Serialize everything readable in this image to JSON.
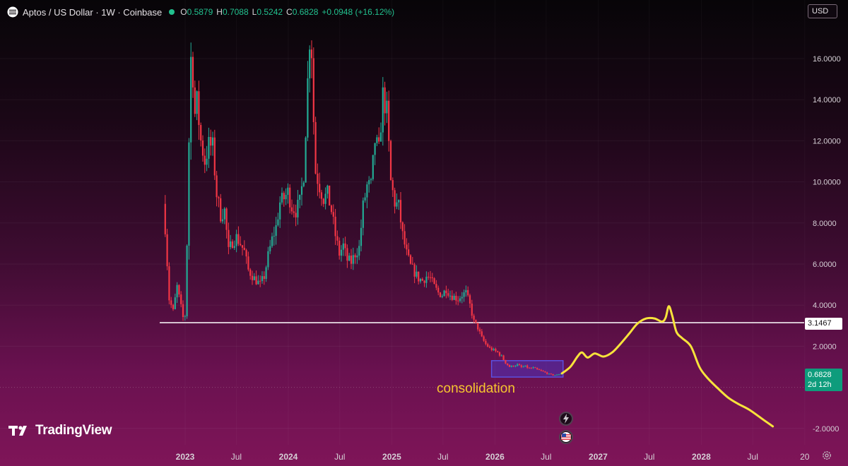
{
  "header": {
    "title": "Aptos / US Dollar · 1W · Coinbase",
    "ohlc": [
      {
        "key": "O",
        "value": "0.5879"
      },
      {
        "key": "H",
        "value": "0.7088"
      },
      {
        "key": "L",
        "value": "0.5242"
      },
      {
        "key": "C",
        "value": "0.6828"
      }
    ],
    "change": "+0.0948 (+16.12%)",
    "status_color": "#22c08e"
  },
  "currency_button": "USD",
  "price_tags": {
    "level": "3.1467",
    "last_price": "0.6828",
    "countdown": "2d 12h"
  },
  "brand": {
    "name": "TradingView"
  },
  "annotation_label": "consolidation",
  "icons": {
    "event_a": "lightning-icon",
    "event_b": "us-flag-icon",
    "settings": "gear-icon",
    "symbol": "aptos-logo-icon"
  },
  "colors": {
    "up": "#22ab94",
    "down": "#f23645",
    "projection": "#f7e33b",
    "consolidation_box": "#5b53e6",
    "level_line": "#ffffff"
  },
  "chart_data": {
    "type": "line",
    "title": "",
    "xlabel": "",
    "ylabel": "",
    "ylim": [
      -2.4,
      17.5
    ],
    "y_ticks": [
      "16.0000",
      "14.0000",
      "12.0000",
      "10.0000",
      "8.0000",
      "6.0000",
      "4.0000",
      "2.0000",
      "-2.0000"
    ],
    "y_tick_values": [
      16,
      14,
      12,
      10,
      8,
      6,
      4,
      2,
      -2
    ],
    "x_ticks": [
      "2023",
      "Jul",
      "2024",
      "Jul",
      "2025",
      "Jul",
      "2026",
      "Jul",
      "2027",
      "Jul",
      "2028",
      "Jul",
      "20"
    ],
    "x_tick_dates": [
      "2023-01-01",
      "2023-07-01",
      "2024-01-01",
      "2024-07-01",
      "2025-01-01",
      "2025-07-01",
      "2026-01-01",
      "2026-07-01",
      "2027-01-01",
      "2027-07-01",
      "2028-01-01",
      "2028-07-01",
      "2029-01-01"
    ],
    "horizontal_level": 3.1467,
    "last_price": 0.6828,
    "series": [
      {
        "type": "price",
        "points": [
          [
            "2022-10-19",
            9.4
          ],
          [
            "2022-10-26",
            7.8
          ],
          [
            "2022-11-09",
            4.3
          ],
          [
            "2022-11-23",
            3.7
          ],
          [
            "2022-12-07",
            4.9
          ],
          [
            "2022-12-28",
            3.4
          ],
          [
            "2023-01-04",
            3.5
          ],
          [
            "2023-01-11",
            7.0
          ],
          [
            "2023-01-18",
            12.0
          ],
          [
            "2023-01-25",
            16.0
          ],
          [
            "2023-02-01",
            15.2
          ],
          [
            "2023-02-08",
            13.3
          ],
          [
            "2023-02-15",
            13.9
          ],
          [
            "2023-03-01",
            12.0
          ],
          [
            "2023-03-15",
            11.0
          ],
          [
            "2023-03-29",
            11.8
          ],
          [
            "2023-04-12",
            11.7
          ],
          [
            "2023-04-26",
            9.4
          ],
          [
            "2023-05-10",
            8.4
          ],
          [
            "2023-05-24",
            8.6
          ],
          [
            "2023-06-07",
            6.6
          ],
          [
            "2023-06-21",
            7.1
          ],
          [
            "2023-07-05",
            7.3
          ],
          [
            "2023-07-19",
            7.0
          ],
          [
            "2023-08-02",
            6.6
          ],
          [
            "2023-08-16",
            5.7
          ],
          [
            "2023-09-06",
            5.3
          ],
          [
            "2023-09-27",
            5.0
          ],
          [
            "2023-10-11",
            5.4
          ],
          [
            "2023-10-25",
            6.4
          ],
          [
            "2023-11-08",
            7.2
          ],
          [
            "2023-11-22",
            7.8
          ],
          [
            "2023-12-06",
            9.0
          ],
          [
            "2023-12-20",
            9.2
          ],
          [
            "2024-01-03",
            9.5
          ],
          [
            "2024-01-17",
            8.8
          ],
          [
            "2024-01-31",
            8.6
          ],
          [
            "2024-02-14",
            9.0
          ],
          [
            "2024-02-28",
            10.4
          ],
          [
            "2024-03-06",
            12.6
          ],
          [
            "2024-03-13",
            14.9
          ],
          [
            "2024-03-20",
            17.0
          ],
          [
            "2024-03-27",
            16.4
          ],
          [
            "2024-04-03",
            13.0
          ],
          [
            "2024-04-10",
            10.5
          ],
          [
            "2024-04-24",
            9.8
          ],
          [
            "2024-05-08",
            9.2
          ],
          [
            "2024-05-22",
            9.4
          ],
          [
            "2024-06-05",
            8.6
          ],
          [
            "2024-06-19",
            7.4
          ],
          [
            "2024-07-03",
            6.5
          ],
          [
            "2024-07-17",
            6.9
          ],
          [
            "2024-07-31",
            6.2
          ],
          [
            "2024-08-14",
            6.1
          ],
          [
            "2024-08-28",
            6.5
          ],
          [
            "2024-09-11",
            6.8
          ],
          [
            "2024-09-25",
            8.8
          ],
          [
            "2024-10-09",
            9.8
          ],
          [
            "2024-10-23",
            9.8
          ],
          [
            "2024-11-06",
            12.0
          ],
          [
            "2024-11-20",
            11.5
          ],
          [
            "2024-12-04",
            14.2
          ],
          [
            "2024-12-18",
            13.4
          ],
          [
            "2025-01-01",
            10.0
          ],
          [
            "2025-01-15",
            9.0
          ],
          [
            "2025-01-29",
            8.8
          ],
          [
            "2025-02-12",
            7.4
          ],
          [
            "2025-02-26",
            6.5
          ],
          [
            "2025-03-12",
            5.9
          ],
          [
            "2025-03-26",
            5.6
          ],
          [
            "2025-04-09",
            5.3
          ],
          [
            "2025-04-23",
            5.2
          ],
          [
            "2025-05-07",
            5.4
          ],
          [
            "2025-05-21",
            5.3
          ],
          [
            "2025-06-04",
            4.9
          ],
          [
            "2025-06-18",
            4.6
          ],
          [
            "2025-07-02",
            4.5
          ],
          [
            "2025-07-16",
            4.8
          ],
          [
            "2025-07-30",
            4.5
          ],
          [
            "2025-08-13",
            4.4
          ],
          [
            "2025-08-27",
            4.3
          ],
          [
            "2025-09-10",
            4.5
          ],
          [
            "2025-09-24",
            4.6
          ],
          [
            "2025-10-08",
            4.0
          ],
          [
            "2025-10-22",
            3.2
          ],
          [
            "2025-11-05",
            2.9
          ],
          [
            "2025-11-19",
            2.4
          ],
          [
            "2025-12-03",
            2.1
          ],
          [
            "2025-12-17",
            1.9
          ],
          [
            "2025-12-31",
            1.8
          ],
          [
            "2026-01-14",
            1.7
          ],
          [
            "2026-01-28",
            1.5
          ],
          [
            "2026-02-11",
            1.2
          ],
          [
            "2026-02-25",
            1.0
          ],
          [
            "2026-03-11",
            1.05
          ],
          [
            "2026-03-25",
            1.1
          ],
          [
            "2026-04-08",
            0.98
          ],
          [
            "2026-04-22",
            1.02
          ],
          [
            "2026-05-06",
            0.92
          ],
          [
            "2026-05-20",
            0.95
          ],
          [
            "2026-06-03",
            0.86
          ],
          [
            "2026-06-17",
            0.8
          ],
          [
            "2026-07-01",
            0.72
          ],
          [
            "2026-07-15",
            0.64
          ],
          [
            "2026-07-29",
            0.6
          ],
          [
            "2026-08-12",
            0.6
          ],
          [
            "2026-08-26",
            0.68
          ]
        ]
      },
      {
        "type": "projection",
        "points": [
          [
            "2026-08-26",
            0.68
          ],
          [
            "2026-09-25",
            1.0
          ],
          [
            "2026-10-20",
            1.5
          ],
          [
            "2026-11-05",
            1.7
          ],
          [
            "2026-11-25",
            1.45
          ],
          [
            "2026-12-20",
            1.65
          ],
          [
            "2027-01-20",
            1.5
          ],
          [
            "2027-02-20",
            1.7
          ],
          [
            "2027-03-20",
            2.1
          ],
          [
            "2027-04-20",
            2.6
          ],
          [
            "2027-05-20",
            3.1
          ],
          [
            "2027-06-20",
            3.35
          ],
          [
            "2027-07-20",
            3.35
          ],
          [
            "2027-08-15",
            3.2
          ],
          [
            "2027-08-28",
            3.4
          ],
          [
            "2027-09-08",
            3.95
          ],
          [
            "2027-09-20",
            3.5
          ],
          [
            "2027-10-05",
            2.7
          ],
          [
            "2027-10-25",
            2.4
          ],
          [
            "2027-11-25",
            2.0
          ],
          [
            "2027-12-25",
            1.0
          ],
          [
            "2028-01-20",
            0.5
          ],
          [
            "2028-02-25",
            0.0
          ],
          [
            "2028-04-05",
            -0.5
          ],
          [
            "2028-05-10",
            -0.8
          ],
          [
            "2028-06-20",
            -1.1
          ],
          [
            "2028-08-10",
            -1.6
          ],
          [
            "2028-09-10",
            -1.9
          ]
        ]
      }
    ],
    "consolidation_box": {
      "from": "2025-12-20",
      "to": "2026-08-30",
      "low": 0.5,
      "high": 1.3
    }
  }
}
